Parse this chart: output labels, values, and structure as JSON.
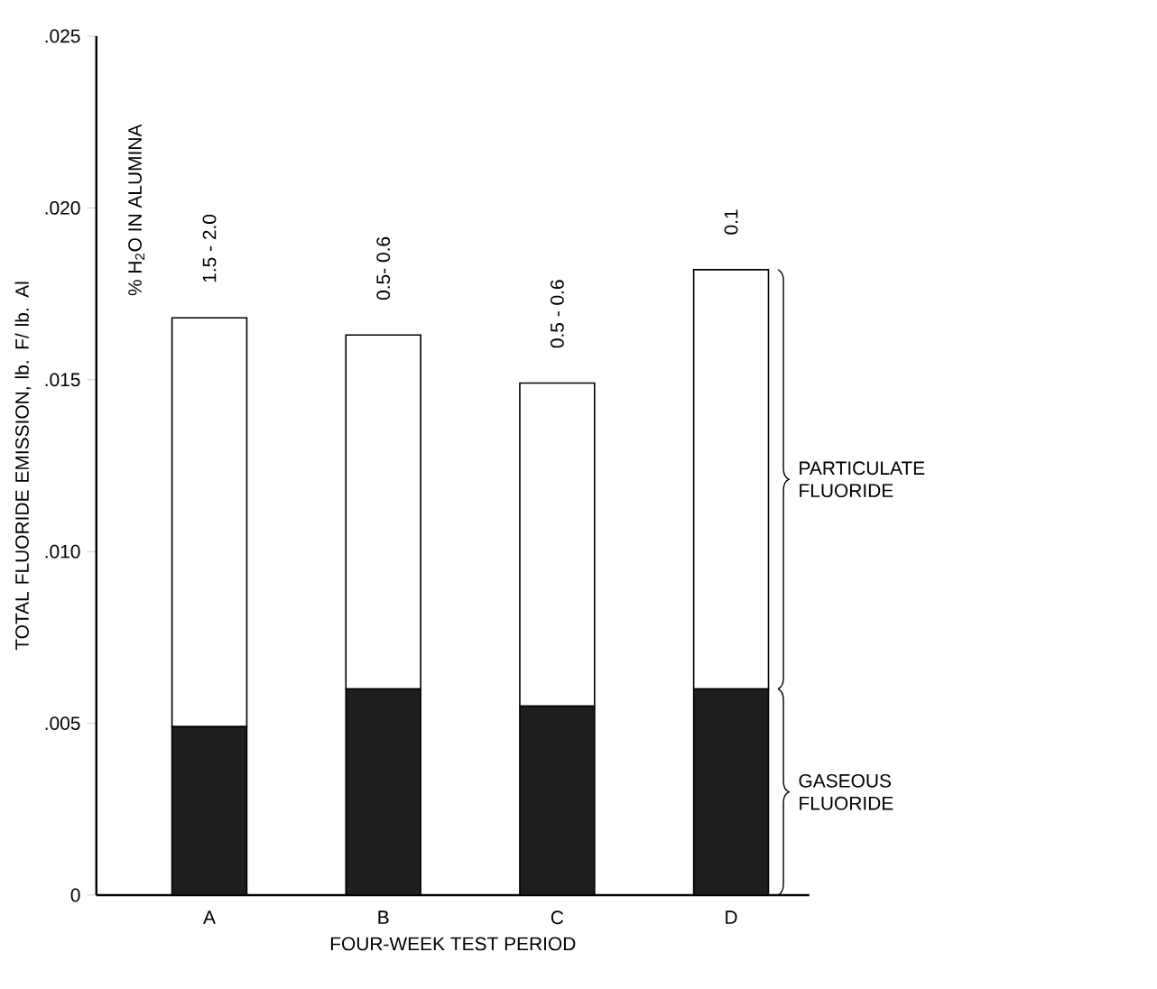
{
  "chart_data": {
    "type": "bar",
    "stacked": true,
    "categories": [
      "A",
      "B",
      "C",
      "D"
    ],
    "series": [
      {
        "name": "GASEOUS FLUORIDE",
        "color": "#1e1e1e",
        "values": [
          0.0049,
          0.006,
          0.0055,
          0.006
        ]
      },
      {
        "name": "PARTICULATE FLUORIDE",
        "color": "#ffffff",
        "values": [
          0.0119,
          0.0103,
          0.0094,
          0.0122
        ]
      }
    ],
    "xlabel": "FOUR-WEEK TEST PERIOD",
    "ylabel": "TOTAL FLUORIDE EMISSION, lb. F/ lb. Al",
    "ylim": [
      0,
      0.025
    ],
    "yticks": [
      0,
      {
        "value": 0.005,
        "label": ".005"
      },
      {
        "value": 0.01,
        "label": ".010"
      },
      {
        "value": 0.015,
        "label": ".015"
      },
      {
        "value": 0.02,
        "label": ".020"
      },
      {
        "value": 0.025,
        "label": ".025"
      }
    ],
    "annotations": [
      "% H$_{2}$O IN ALUMINA",
      "1.5 - 2.0",
      "0.5- 0.6",
      "0.5 - 0.6",
      "0.1"
    ]
  }
}
